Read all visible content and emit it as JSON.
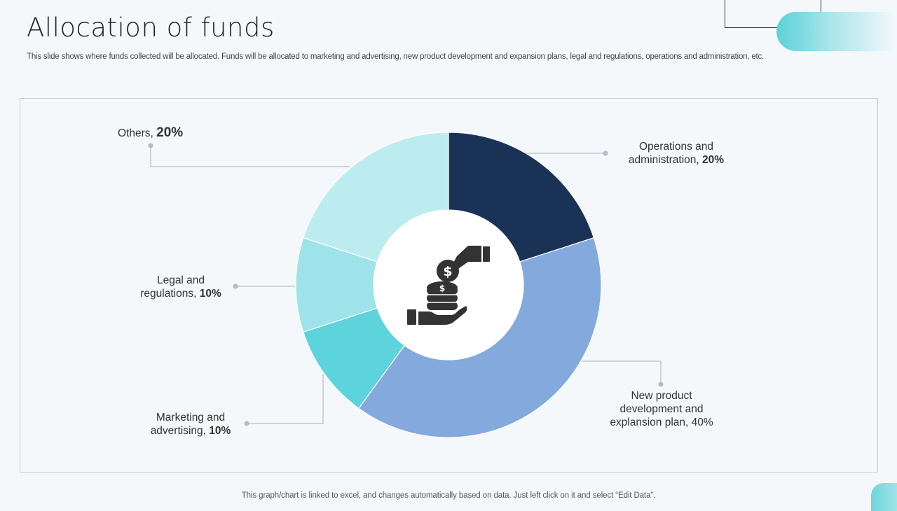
{
  "slide": {
    "title": "Allocation of funds",
    "subtitle": "This slide shows where funds collected will be allocated. Funds will be allocated to marketing and advertising, new product development and expansion plans, legal and regulations, operations and administration, etc.",
    "footer": "This graph/chart is linked to excel,  and changes automatically based on data. Just left click on it and select “Edit Data”."
  },
  "center_icon": "hand-coins-icon",
  "chart_data": {
    "type": "pie",
    "style": "donut",
    "unit": "%",
    "slices": [
      {
        "label": "Operations and administration",
        "label_lines": [
          "Operations and",
          "administration,"
        ],
        "value": 20,
        "value_text": "20%",
        "color": "#193256"
      },
      {
        "label": "New product development and explansion plan",
        "label_lines": [
          "New product",
          "development  and",
          "explansion plan,"
        ],
        "value": 40,
        "value_text": "40%",
        "color": "#84a9dc"
      },
      {
        "label": "Marketing and advertising",
        "label_lines": [
          "Marketing and",
          "advertising,"
        ],
        "value": 10,
        "value_text": "10%",
        "color": "#5dd3db"
      },
      {
        "label": "Legal and regulations",
        "label_lines": [
          "Legal and",
          "regulations,"
        ],
        "value": 10,
        "value_text": "10%",
        "color": "#9ee3e9"
      },
      {
        "label": "Others",
        "label_lines": [
          "Others,"
        ],
        "value": 20,
        "value_text": "20%",
        "color": "#bdecf0"
      }
    ]
  }
}
